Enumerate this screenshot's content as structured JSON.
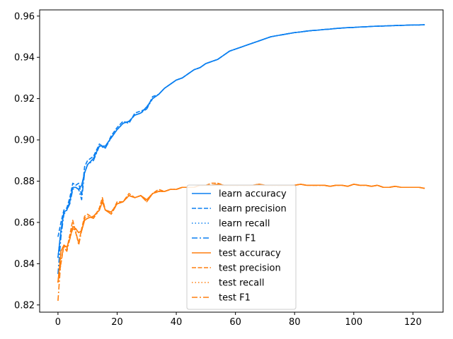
{
  "chart_data": {
    "type": "line",
    "title": "",
    "xlabel": "",
    "ylabel": "",
    "xlim": [
      -6.2,
      130.2
    ],
    "ylim": [
      0.8165,
      0.963
    ],
    "xticks": [
      0,
      20,
      40,
      60,
      80,
      100,
      120
    ],
    "yticks": [
      0.82,
      0.84,
      0.86,
      0.88,
      0.9,
      0.92,
      0.94,
      0.96
    ],
    "ytick_labels": [
      "0.82",
      "0.84",
      "0.86",
      "0.88",
      "0.90",
      "0.92",
      "0.94",
      "0.96"
    ],
    "grid": false,
    "legend_position": "lower-center",
    "colors": {
      "learn": "#1f77b4",
      "learn_display": "#0a7ff0",
      "test": "#ff7f0e"
    },
    "series": [
      {
        "name": "learn accuracy",
        "style": "solid",
        "color": "#0a7ff0",
        "x": [
          0,
          1,
          2,
          3,
          4,
          5,
          6,
          7,
          8,
          9,
          10,
          12,
          14,
          16,
          18,
          20,
          22,
          24,
          26,
          28,
          30,
          32,
          34,
          36,
          38,
          40,
          42,
          44,
          46,
          48,
          50,
          52,
          54,
          56,
          58,
          60,
          62,
          64,
          66,
          68,
          70,
          72,
          74,
          76,
          78,
          80,
          82,
          84,
          86,
          88,
          90,
          92,
          94,
          96,
          98,
          100,
          102,
          104,
          106,
          108,
          110,
          112,
          114,
          116,
          118,
          120,
          122,
          124
        ],
        "y": [
          0.843,
          0.856,
          0.865,
          0.866,
          0.87,
          0.877,
          0.877,
          0.876,
          0.878,
          0.884,
          0.888,
          0.891,
          0.897,
          0.897,
          0.901,
          0.905,
          0.908,
          0.909,
          0.912,
          0.913,
          0.916,
          0.92,
          0.922,
          0.925,
          0.927,
          0.929,
          0.93,
          0.932,
          0.934,
          0.935,
          0.937,
          0.938,
          0.939,
          0.941,
          0.943,
          0.944,
          0.945,
          0.946,
          0.947,
          0.948,
          0.949,
          0.95,
          0.9505,
          0.951,
          0.9515,
          0.952,
          0.9523,
          0.9527,
          0.953,
          0.9532,
          0.9535,
          0.9537,
          0.954,
          0.9542,
          0.9544,
          0.9545,
          0.9547,
          0.9548,
          0.955,
          0.9551,
          0.9552,
          0.9553,
          0.9554,
          0.9555,
          0.9556,
          0.9557,
          0.9557,
          0.9558
        ]
      },
      {
        "name": "learn precision",
        "style": "dashed",
        "color": "#0a7ff0",
        "x": [
          0,
          1,
          2,
          3,
          4,
          5,
          6,
          7,
          8,
          9,
          10,
          12,
          14,
          16,
          18,
          20,
          22,
          24,
          26,
          28,
          30,
          32,
          34,
          36,
          38,
          40,
          42,
          44,
          46,
          48,
          50,
          52,
          54,
          56,
          58,
          60,
          62,
          64,
          66,
          68,
          70,
          72,
          74,
          76,
          78,
          80,
          82,
          84,
          86,
          88,
          90,
          92,
          94,
          96,
          98,
          100,
          102,
          104,
          106,
          108,
          110,
          112,
          114,
          116,
          118,
          120,
          122,
          124
        ],
        "y": [
          0.853,
          0.86,
          0.866,
          0.867,
          0.872,
          0.879,
          0.878,
          0.879,
          0.873,
          0.887,
          0.89,
          0.892,
          0.898,
          0.896,
          0.902,
          0.906,
          0.909,
          0.908,
          0.913,
          0.914,
          0.915,
          0.921,
          0.922,
          0.925,
          0.927,
          0.929,
          0.93,
          0.932,
          0.934,
          0.935,
          0.937,
          0.938,
          0.939,
          0.941,
          0.943,
          0.944,
          0.945,
          0.946,
          0.947,
          0.948,
          0.949,
          0.95,
          0.9505,
          0.951,
          0.9515,
          0.952,
          0.9523,
          0.9527,
          0.953,
          0.9532,
          0.9535,
          0.9537,
          0.954,
          0.9542,
          0.9544,
          0.9545,
          0.9547,
          0.9548,
          0.955,
          0.9551,
          0.9552,
          0.9553,
          0.9554,
          0.9555,
          0.9556,
          0.9557,
          0.9557,
          0.9558
        ]
      },
      {
        "name": "learn recall",
        "style": "dotted",
        "color": "#0a7ff0",
        "x": [
          0,
          1,
          2,
          3,
          4,
          5,
          6,
          7,
          8,
          9,
          10,
          12,
          14,
          16,
          18,
          20,
          22,
          24,
          26,
          28,
          30,
          32,
          34,
          36,
          38,
          40,
          42,
          44,
          46,
          48,
          50,
          52,
          54,
          56,
          58,
          60,
          62,
          64,
          66,
          68,
          70,
          72,
          74,
          76,
          78,
          80,
          82,
          84,
          86,
          88,
          90,
          92,
          94,
          96,
          98,
          100,
          102,
          104,
          106,
          108,
          110,
          112,
          114,
          116,
          118,
          120,
          122,
          124
        ],
        "y": [
          0.843,
          0.856,
          0.865,
          0.866,
          0.87,
          0.877,
          0.877,
          0.876,
          0.878,
          0.884,
          0.888,
          0.891,
          0.897,
          0.897,
          0.901,
          0.905,
          0.908,
          0.909,
          0.912,
          0.913,
          0.916,
          0.92,
          0.922,
          0.925,
          0.927,
          0.929,
          0.93,
          0.932,
          0.934,
          0.935,
          0.937,
          0.938,
          0.939,
          0.941,
          0.943,
          0.944,
          0.945,
          0.946,
          0.947,
          0.948,
          0.949,
          0.95,
          0.9505,
          0.951,
          0.9515,
          0.952,
          0.9523,
          0.9527,
          0.953,
          0.9532,
          0.9535,
          0.9537,
          0.954,
          0.9542,
          0.9544,
          0.9545,
          0.9547,
          0.9548,
          0.955,
          0.9551,
          0.9552,
          0.9553,
          0.9554,
          0.9555,
          0.9556,
          0.9557,
          0.9557,
          0.9558
        ]
      },
      {
        "name": "learn F1",
        "style": "dashdot",
        "color": "#0a7ff0",
        "x": [
          0,
          1,
          2,
          3,
          4,
          5,
          6,
          7,
          8,
          9,
          10,
          12,
          14,
          16,
          18,
          20,
          22,
          24,
          26,
          28,
          30,
          32,
          34,
          36,
          38,
          40,
          42,
          44,
          46,
          48,
          50,
          52,
          54,
          56,
          58,
          60,
          62,
          64,
          66,
          68,
          70,
          72,
          74,
          76,
          78,
          80,
          82,
          84,
          86,
          88,
          90,
          92,
          94,
          96,
          98,
          100,
          102,
          104,
          106,
          108,
          110,
          112,
          114,
          116,
          118,
          120,
          122,
          124
        ],
        "y": [
          0.835,
          0.853,
          0.864,
          0.866,
          0.869,
          0.876,
          0.877,
          0.876,
          0.871,
          0.884,
          0.888,
          0.89,
          0.897,
          0.896,
          0.901,
          0.905,
          0.908,
          0.909,
          0.912,
          0.913,
          0.915,
          0.92,
          0.922,
          0.925,
          0.927,
          0.929,
          0.93,
          0.932,
          0.934,
          0.935,
          0.937,
          0.938,
          0.939,
          0.941,
          0.943,
          0.944,
          0.945,
          0.946,
          0.947,
          0.948,
          0.949,
          0.95,
          0.9505,
          0.951,
          0.9515,
          0.952,
          0.9523,
          0.9527,
          0.953,
          0.9532,
          0.9535,
          0.9537,
          0.954,
          0.9542,
          0.9544,
          0.9545,
          0.9547,
          0.9548,
          0.955,
          0.9551,
          0.9552,
          0.9553,
          0.9554,
          0.9555,
          0.9556,
          0.9557,
          0.9557,
          0.9558
        ]
      },
      {
        "name": "test accuracy",
        "style": "solid",
        "color": "#ff7f0e",
        "x": [
          0,
          1,
          2,
          3,
          4,
          5,
          6,
          7,
          8,
          9,
          10,
          12,
          14,
          15,
          16,
          18,
          20,
          22,
          24,
          26,
          28,
          30,
          32,
          34,
          36,
          38,
          40,
          42,
          44,
          46,
          48,
          50,
          52,
          54,
          56,
          58,
          60,
          62,
          64,
          66,
          68,
          70,
          72,
          74,
          76,
          78,
          80,
          82,
          84,
          86,
          88,
          90,
          92,
          94,
          96,
          98,
          100,
          102,
          104,
          106,
          108,
          110,
          112,
          114,
          116,
          118,
          120,
          122,
          124
        ],
        "y": [
          0.831,
          0.846,
          0.849,
          0.848,
          0.852,
          0.858,
          0.857,
          0.855,
          0.856,
          0.861,
          0.862,
          0.863,
          0.866,
          0.87,
          0.866,
          0.865,
          0.869,
          0.87,
          0.873,
          0.872,
          0.873,
          0.871,
          0.874,
          0.875,
          0.875,
          0.876,
          0.876,
          0.877,
          0.877,
          0.877,
          0.878,
          0.878,
          0.878,
          0.8785,
          0.878,
          0.878,
          0.878,
          0.878,
          0.878,
          0.878,
          0.8785,
          0.878,
          0.878,
          0.878,
          0.878,
          0.878,
          0.878,
          0.8785,
          0.878,
          0.878,
          0.878,
          0.878,
          0.8775,
          0.878,
          0.878,
          0.8775,
          0.8785,
          0.878,
          0.878,
          0.8775,
          0.878,
          0.877,
          0.877,
          0.8775,
          0.877,
          0.877,
          0.877,
          0.877,
          0.8765
        ]
      },
      {
        "name": "test precision",
        "style": "dashed",
        "color": "#ff7f0e",
        "x": [
          0,
          1,
          2,
          3,
          4,
          5,
          6,
          7,
          8,
          9,
          10,
          12,
          14,
          15,
          16,
          18,
          20,
          22,
          24,
          26,
          28,
          30,
          32,
          34,
          36,
          38,
          40,
          42,
          44,
          46,
          48,
          50,
          52,
          54,
          56,
          58,
          60,
          62,
          64,
          66,
          68,
          70,
          72,
          74,
          76,
          78,
          80,
          82,
          84,
          86,
          88,
          90,
          92,
          94,
          96,
          98,
          100,
          102,
          104,
          106,
          108,
          110,
          112,
          114,
          116,
          118,
          120,
          122,
          124
        ],
        "y": [
          0.831,
          0.84,
          0.849,
          0.847,
          0.854,
          0.861,
          0.855,
          0.85,
          0.857,
          0.863,
          0.864,
          0.862,
          0.867,
          0.872,
          0.866,
          0.864,
          0.87,
          0.87,
          0.874,
          0.872,
          0.873,
          0.87,
          0.874,
          0.876,
          0.875,
          0.876,
          0.876,
          0.877,
          0.877,
          0.877,
          0.878,
          0.878,
          0.879,
          0.879,
          0.878,
          0.878,
          0.878,
          0.878,
          0.878,
          0.878,
          0.8785,
          0.878,
          0.878,
          0.878,
          0.878,
          0.878,
          0.878,
          0.8785,
          0.878,
          0.878,
          0.878,
          0.878,
          0.8775,
          0.878,
          0.878,
          0.8775,
          0.8785,
          0.878,
          0.878,
          0.8775,
          0.878,
          0.877,
          0.877,
          0.8775,
          0.877,
          0.877,
          0.877,
          0.877,
          0.8765
        ]
      },
      {
        "name": "test recall",
        "style": "dotted",
        "color": "#ff7f0e",
        "x": [
          0,
          1,
          2,
          3,
          4,
          5,
          6,
          7,
          8,
          9,
          10,
          12,
          14,
          15,
          16,
          18,
          20,
          22,
          24,
          26,
          28,
          30,
          32,
          34,
          36,
          38,
          40,
          42,
          44,
          46,
          48,
          50,
          52,
          54,
          56,
          58,
          60,
          62,
          64,
          66,
          68,
          70,
          72,
          74,
          76,
          78,
          80,
          82,
          84,
          86,
          88,
          90,
          92,
          94,
          96,
          98,
          100,
          102,
          104,
          106,
          108,
          110,
          112,
          114,
          116,
          118,
          120,
          122,
          124
        ],
        "y": [
          0.831,
          0.846,
          0.849,
          0.848,
          0.852,
          0.858,
          0.857,
          0.855,
          0.856,
          0.861,
          0.862,
          0.863,
          0.866,
          0.87,
          0.866,
          0.865,
          0.869,
          0.87,
          0.873,
          0.872,
          0.873,
          0.871,
          0.874,
          0.875,
          0.875,
          0.876,
          0.876,
          0.877,
          0.877,
          0.877,
          0.878,
          0.878,
          0.878,
          0.8785,
          0.878,
          0.878,
          0.878,
          0.878,
          0.878,
          0.878,
          0.8785,
          0.878,
          0.878,
          0.878,
          0.878,
          0.878,
          0.878,
          0.8785,
          0.878,
          0.878,
          0.878,
          0.878,
          0.8775,
          0.878,
          0.878,
          0.8775,
          0.8785,
          0.878,
          0.878,
          0.8775,
          0.878,
          0.877,
          0.877,
          0.8775,
          0.877,
          0.877,
          0.877,
          0.877,
          0.8765
        ]
      },
      {
        "name": "test F1",
        "style": "dashdot",
        "color": "#ff7f0e",
        "x": [
          0,
          1,
          2,
          3,
          4,
          5,
          6,
          7,
          8,
          9,
          10,
          12,
          14,
          15,
          16,
          18,
          20,
          22,
          24,
          26,
          28,
          30,
          32,
          34,
          36,
          38,
          40,
          42,
          44,
          46,
          48,
          50,
          52,
          54,
          56,
          58,
          60,
          62,
          64,
          66,
          68,
          70,
          72,
          74,
          76,
          78,
          80,
          82,
          84,
          86,
          88,
          90,
          92,
          94,
          96,
          98,
          100,
          102,
          104,
          106,
          108,
          110,
          112,
          114,
          116,
          118,
          120,
          122,
          124
        ],
        "y": [
          0.822,
          0.842,
          0.848,
          0.846,
          0.852,
          0.857,
          0.856,
          0.849,
          0.856,
          0.862,
          0.863,
          0.862,
          0.866,
          0.871,
          0.866,
          0.864,
          0.869,
          0.87,
          0.873,
          0.872,
          0.873,
          0.87,
          0.874,
          0.875,
          0.875,
          0.876,
          0.876,
          0.877,
          0.877,
          0.877,
          0.878,
          0.878,
          0.878,
          0.8785,
          0.878,
          0.878,
          0.878,
          0.878,
          0.878,
          0.878,
          0.8785,
          0.878,
          0.878,
          0.878,
          0.878,
          0.878,
          0.878,
          0.8785,
          0.878,
          0.878,
          0.878,
          0.878,
          0.8775,
          0.878,
          0.878,
          0.8775,
          0.8785,
          0.878,
          0.878,
          0.8775,
          0.878,
          0.877,
          0.877,
          0.8775,
          0.877,
          0.877,
          0.877,
          0.877,
          0.8765
        ]
      }
    ]
  }
}
